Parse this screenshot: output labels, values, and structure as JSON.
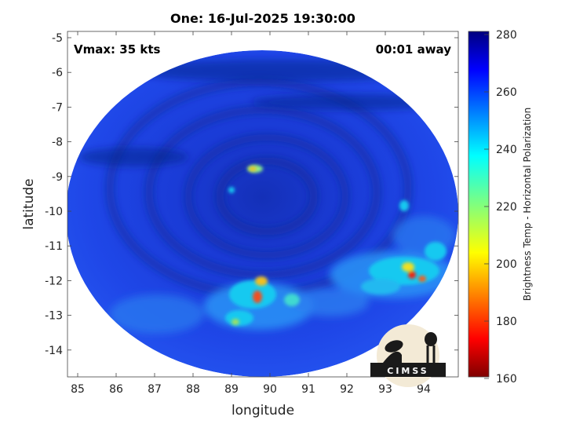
{
  "title": "One: 16-Jul-2025 19:30:00",
  "annotations": {
    "vmax": "Vmax: 35 kts",
    "time_away": "00:01 away"
  },
  "axes": {
    "xlabel": "longitude",
    "ylabel": "latitude",
    "x_ticks": [
      "85",
      "86",
      "87",
      "88",
      "89",
      "90",
      "91",
      "92",
      "93",
      "94"
    ],
    "y_ticks": [
      "-5",
      "-6",
      "-7",
      "-8",
      "-9",
      "-10",
      "-11",
      "-12",
      "-13",
      "-14"
    ]
  },
  "colorbar": {
    "label": "Brightness Temp - Horizontal Polarization",
    "ticks": [
      "280",
      "260",
      "240",
      "220",
      "200",
      "180",
      "160"
    ],
    "range": [
      160,
      280
    ],
    "colormap": "jet"
  },
  "logo": {
    "text": "CIMSS"
  },
  "colors": {
    "background_scene": "#1d3fe0",
    "dark_band": "#102a9c",
    "convection_high": "#16c8f0",
    "convection_peak": "#f02010"
  }
}
